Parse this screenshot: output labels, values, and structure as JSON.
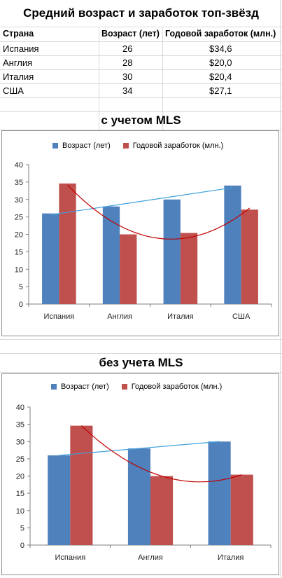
{
  "sheet": {
    "title": "Средний возраст и заработок топ-звёзд",
    "headers": [
      "Страна",
      "Возраст (лет)",
      "Годовой заработок (млн.)"
    ],
    "rows": [
      [
        "Испания",
        "26",
        "$34,6"
      ],
      [
        "Англия",
        "28",
        "$20,0"
      ],
      [
        "Италия",
        "30",
        "$20,4"
      ],
      [
        "США",
        "34",
        "$27,1"
      ]
    ]
  },
  "section1_title": "с учетом MLS",
  "section2_title": "без учета MLS",
  "colors": {
    "age": "#4f81bd",
    "salary": "#c0504d",
    "age_trend": "#3fa0dd",
    "salary_trend": "#c00000"
  },
  "chart_data": [
    {
      "type": "bar",
      "categories": [
        "Испания",
        "Англия",
        "Италия",
        "США"
      ],
      "series": [
        {
          "name": "Возраст (лет)",
          "values": [
            26,
            28,
            30,
            34
          ]
        },
        {
          "name": "Годовой заработок (млн.)",
          "values": [
            34.6,
            20.0,
            20.4,
            27.1
          ]
        }
      ],
      "trendlines": [
        {
          "series": "Возраст (лет)",
          "kind": "linear"
        },
        {
          "series": "Годовой заработок (млн.)",
          "kind": "polynomial"
        }
      ],
      "ylim": [
        0,
        40
      ],
      "yticks": [
        0,
        5,
        10,
        15,
        20,
        25,
        30,
        35,
        40
      ],
      "legend": "top",
      "grid": false
    },
    {
      "type": "bar",
      "categories": [
        "Испания",
        "Англия",
        "Италия"
      ],
      "series": [
        {
          "name": "Возраст (лет)",
          "values": [
            26,
            28,
            30
          ]
        },
        {
          "name": "Годовой заработок (млн.)",
          "values": [
            34.6,
            20.0,
            20.4
          ]
        }
      ],
      "trendlines": [
        {
          "series": "Возраст (лет)",
          "kind": "linear"
        },
        {
          "series": "Годовой заработок (млн.)",
          "kind": "polynomial"
        }
      ],
      "ylim": [
        0,
        40
      ],
      "yticks": [
        0,
        5,
        10,
        15,
        20,
        25,
        30,
        35,
        40
      ],
      "legend": "top",
      "grid": false
    }
  ]
}
